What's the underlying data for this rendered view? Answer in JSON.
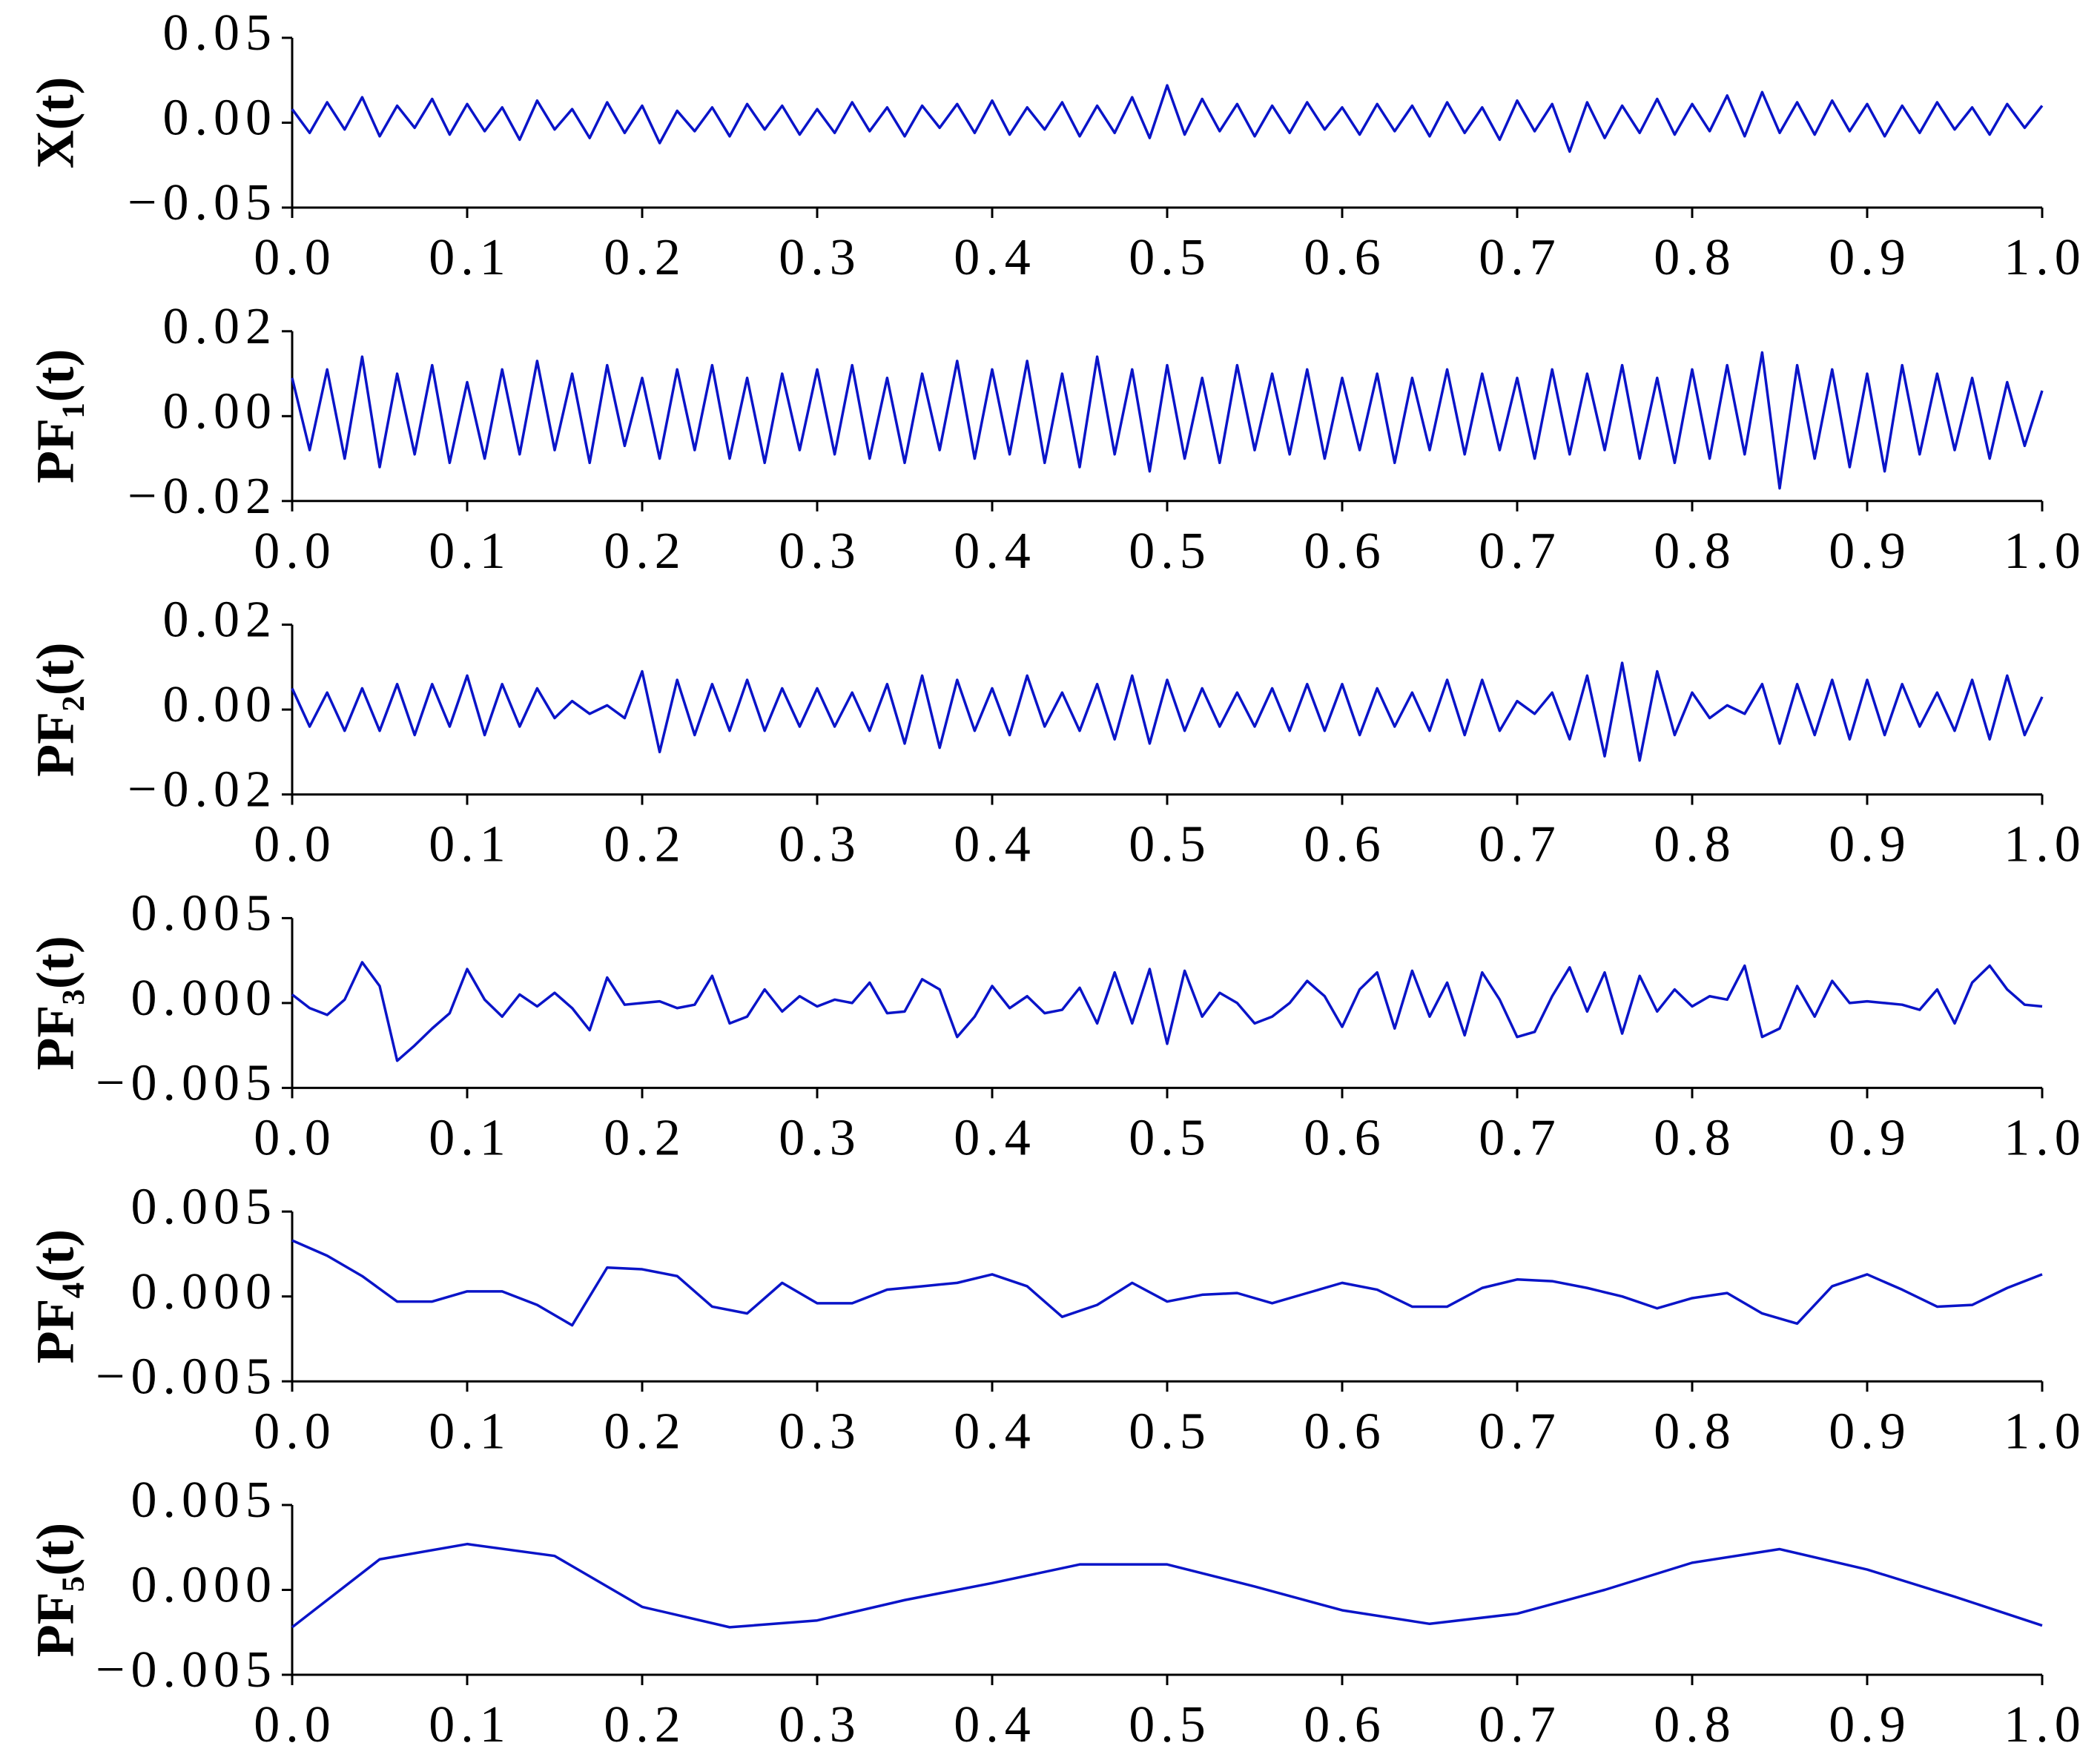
{
  "chart_data": [
    {
      "type": "line",
      "ylabel": "X(t)",
      "color": "#0a14c8",
      "xlim": [
        0,
        1
      ],
      "ylim": [
        -0.05,
        0.05
      ],
      "xticks": [
        {
          "value": 0,
          "label": "0.0"
        },
        0.1,
        0.2,
        0.3,
        0.4,
        0.5,
        0.6,
        0.7,
        0.8,
        0.9,
        {
          "value": 1,
          "label": "1.0"
        }
      ],
      "yticks": [
        {
          "value": -0.05,
          "label": "−0.05"
        },
        {
          "value": 0,
          "label": "0.00"
        },
        {
          "value": 0.05,
          "label": "0.05"
        }
      ],
      "x": [
        0,
        0.01,
        0.02,
        0.03,
        0.04,
        0.05,
        0.06,
        0.07,
        0.08,
        0.09,
        0.1,
        0.11,
        0.12,
        0.13,
        0.14,
        0.15,
        0.16,
        0.17,
        0.18,
        0.19,
        0.2,
        0.21,
        0.22,
        0.23,
        0.24,
        0.25,
        0.26,
        0.27,
        0.28,
        0.29,
        0.3,
        0.31,
        0.32,
        0.33,
        0.34,
        0.35,
        0.36,
        0.37,
        0.38,
        0.39,
        0.4,
        0.41,
        0.42,
        0.43,
        0.44,
        0.45,
        0.46,
        0.47,
        0.48,
        0.49,
        0.5,
        0.51,
        0.52,
        0.53,
        0.54,
        0.55,
        0.56,
        0.57,
        0.58,
        0.59,
        0.6,
        0.61,
        0.62,
        0.63,
        0.64,
        0.65,
        0.66,
        0.67,
        0.68,
        0.69,
        0.7,
        0.71,
        0.72,
        0.73,
        0.74,
        0.75,
        0.76,
        0.77,
        0.78,
        0.79,
        0.8,
        0.81,
        0.82,
        0.83,
        0.84,
        0.85,
        0.86,
        0.87,
        0.88,
        0.89,
        0.9,
        0.91,
        0.92,
        0.93,
        0.94,
        0.95,
        0.96,
        0.97,
        0.98,
        0.99,
        1
      ],
      "values": [
        0.008,
        -0.006,
        0.012,
        -0.004,
        0.015,
        -0.008,
        0.01,
        -0.003,
        0.014,
        -0.007,
        0.011,
        -0.005,
        0.009,
        -0.01,
        0.013,
        -0.004,
        0.008,
        -0.009,
        0.012,
        -0.006,
        0.01,
        -0.012,
        0.007,
        -0.005,
        0.009,
        -0.008,
        0.011,
        -0.004,
        0.01,
        -0.007,
        0.008,
        -0.006,
        0.012,
        -0.005,
        0.009,
        -0.008,
        0.01,
        -0.003,
        0.011,
        -0.006,
        0.013,
        -0.007,
        0.009,
        -0.004,
        0.012,
        -0.008,
        0.01,
        -0.006,
        0.015,
        -0.009,
        0.022,
        -0.007,
        0.014,
        -0.005,
        0.011,
        -0.008,
        0.01,
        -0.006,
        0.012,
        -0.004,
        0.009,
        -0.007,
        0.011,
        -0.005,
        0.01,
        -0.008,
        0.012,
        -0.006,
        0.009,
        -0.01,
        0.013,
        -0.005,
        0.011,
        -0.017,
        0.012,
        -0.009,
        0.01,
        -0.006,
        0.014,
        -0.007,
        0.011,
        -0.005,
        0.016,
        -0.008,
        0.018,
        -0.006,
        0.012,
        -0.007,
        0.013,
        -0.005,
        0.011,
        -0.008,
        0.01,
        -0.006,
        0.012,
        -0.004,
        0.009,
        -0.007,
        0.011,
        -0.003,
        0.01
      ]
    },
    {
      "type": "line",
      "ylabel": "PF₁(t)",
      "color": "#0a14c8",
      "xlim": [
        0,
        1
      ],
      "ylim": [
        -0.02,
        0.02
      ],
      "xticks": [
        {
          "value": 0,
          "label": "0.0"
        },
        0.1,
        0.2,
        0.3,
        0.4,
        0.5,
        0.6,
        0.7,
        0.8,
        0.9,
        {
          "value": 1,
          "label": "1.0"
        }
      ],
      "yticks": [
        {
          "value": -0.02,
          "label": "−0.02"
        },
        {
          "value": 0,
          "label": "0.00"
        },
        {
          "value": 0.02,
          "label": "0.02"
        }
      ],
      "x": [
        0,
        0.01,
        0.02,
        0.03,
        0.04,
        0.05,
        0.06,
        0.07,
        0.08,
        0.09,
        0.1,
        0.11,
        0.12,
        0.13,
        0.14,
        0.15,
        0.16,
        0.17,
        0.18,
        0.19,
        0.2,
        0.21,
        0.22,
        0.23,
        0.24,
        0.25,
        0.26,
        0.27,
        0.28,
        0.29,
        0.3,
        0.31,
        0.32,
        0.33,
        0.34,
        0.35,
        0.36,
        0.37,
        0.38,
        0.39,
        0.4,
        0.41,
        0.42,
        0.43,
        0.44,
        0.45,
        0.46,
        0.47,
        0.48,
        0.49,
        0.5,
        0.51,
        0.52,
        0.53,
        0.54,
        0.55,
        0.56,
        0.57,
        0.58,
        0.59,
        0.6,
        0.61,
        0.62,
        0.63,
        0.64,
        0.65,
        0.66,
        0.67,
        0.68,
        0.69,
        0.7,
        0.71,
        0.72,
        0.73,
        0.74,
        0.75,
        0.76,
        0.77,
        0.78,
        0.79,
        0.8,
        0.81,
        0.82,
        0.83,
        0.84,
        0.85,
        0.86,
        0.87,
        0.88,
        0.89,
        0.9,
        0.91,
        0.92,
        0.93,
        0.94,
        0.95,
        0.96,
        0.97,
        0.98,
        0.99,
        1
      ],
      "values": [
        0.009,
        -0.008,
        0.011,
        -0.01,
        0.014,
        -0.012,
        0.01,
        -0.009,
        0.012,
        -0.011,
        0.008,
        -0.01,
        0.011,
        -0.009,
        0.013,
        -0.008,
        0.01,
        -0.011,
        0.012,
        -0.007,
        0.009,
        -0.01,
        0.011,
        -0.008,
        0.012,
        -0.01,
        0.009,
        -0.011,
        0.01,
        -0.008,
        0.011,
        -0.009,
        0.012,
        -0.01,
        0.009,
        -0.011,
        0.01,
        -0.008,
        0.013,
        -0.01,
        0.011,
        -0.009,
        0.013,
        -0.011,
        0.01,
        -0.012,
        0.014,
        -0.009,
        0.011,
        -0.013,
        0.012,
        -0.01,
        0.009,
        -0.011,
        0.012,
        -0.008,
        0.01,
        -0.009,
        0.011,
        -0.01,
        0.009,
        -0.008,
        0.01,
        -0.011,
        0.009,
        -0.008,
        0.011,
        -0.009,
        0.01,
        -0.008,
        0.009,
        -0.01,
        0.011,
        -0.009,
        0.01,
        -0.008,
        0.012,
        -0.01,
        0.009,
        -0.011,
        0.011,
        -0.01,
        0.012,
        -0.009,
        0.015,
        -0.017,
        0.012,
        -0.01,
        0.011,
        -0.012,
        0.01,
        -0.013,
        0.012,
        -0.009,
        0.01,
        -0.008,
        0.009,
        -0.01,
        0.008,
        -0.007,
        0.006
      ]
    },
    {
      "type": "line",
      "ylabel": "PF₂(t)",
      "color": "#0a14c8",
      "xlim": [
        0,
        1
      ],
      "ylim": [
        -0.02,
        0.02
      ],
      "xticks": [
        {
          "value": 0,
          "label": "0.0"
        },
        0.1,
        0.2,
        0.3,
        0.4,
        0.5,
        0.6,
        0.7,
        0.8,
        0.9,
        {
          "value": 1,
          "label": "1.0"
        }
      ],
      "yticks": [
        {
          "value": -0.02,
          "label": "−0.02"
        },
        {
          "value": 0,
          "label": "0.00"
        },
        {
          "value": 0.02,
          "label": "0.02"
        }
      ],
      "x": [
        0,
        0.01,
        0.02,
        0.03,
        0.04,
        0.05,
        0.06,
        0.07,
        0.08,
        0.09,
        0.1,
        0.11,
        0.12,
        0.13,
        0.14,
        0.15,
        0.16,
        0.17,
        0.18,
        0.19,
        0.2,
        0.21,
        0.22,
        0.23,
        0.24,
        0.25,
        0.26,
        0.27,
        0.28,
        0.29,
        0.3,
        0.31,
        0.32,
        0.33,
        0.34,
        0.35,
        0.36,
        0.37,
        0.38,
        0.39,
        0.4,
        0.41,
        0.42,
        0.43,
        0.44,
        0.45,
        0.46,
        0.47,
        0.48,
        0.49,
        0.5,
        0.51,
        0.52,
        0.53,
        0.54,
        0.55,
        0.56,
        0.57,
        0.58,
        0.59,
        0.6,
        0.61,
        0.62,
        0.63,
        0.64,
        0.65,
        0.66,
        0.67,
        0.68,
        0.69,
        0.7,
        0.71,
        0.72,
        0.73,
        0.74,
        0.75,
        0.76,
        0.77,
        0.78,
        0.79,
        0.8,
        0.81,
        0.82,
        0.83,
        0.84,
        0.85,
        0.86,
        0.87,
        0.88,
        0.89,
        0.9,
        0.91,
        0.92,
        0.93,
        0.94,
        0.95,
        0.96,
        0.97,
        0.98,
        0.99,
        1
      ],
      "values": [
        0.005,
        -0.004,
        0.004,
        -0.005,
        0.005,
        -0.005,
        0.006,
        -0.006,
        0.006,
        -0.004,
        0.008,
        -0.006,
        0.006,
        -0.004,
        0.005,
        -0.002,
        0.002,
        -0.001,
        0.001,
        -0.002,
        0.009,
        -0.01,
        0.007,
        -0.006,
        0.006,
        -0.005,
        0.007,
        -0.005,
        0.005,
        -0.004,
        0.005,
        -0.004,
        0.004,
        -0.005,
        0.006,
        -0.008,
        0.008,
        -0.009,
        0.007,
        -0.005,
        0.005,
        -0.006,
        0.008,
        -0.004,
        0.004,
        -0.005,
        0.006,
        -0.007,
        0.008,
        -0.008,
        0.007,
        -0.005,
        0.005,
        -0.004,
        0.004,
        -0.004,
        0.005,
        -0.005,
        0.006,
        -0.005,
        0.006,
        -0.006,
        0.005,
        -0.004,
        0.004,
        -0.005,
        0.007,
        -0.006,
        0.007,
        -0.005,
        0.002,
        -0.001,
        0.004,
        -0.007,
        0.008,
        -0.011,
        0.011,
        -0.012,
        0.009,
        -0.006,
        0.004,
        -0.002,
        0.001,
        -0.001,
        0.006,
        -0.008,
        0.006,
        -0.006,
        0.007,
        -0.007,
        0.007,
        -0.006,
        0.006,
        -0.004,
        0.004,
        -0.005,
        0.007,
        -0.007,
        0.008,
        -0.006,
        0.003
      ]
    },
    {
      "type": "line",
      "ylabel": "PF₃(t)",
      "color": "#0a14c8",
      "xlim": [
        0,
        1
      ],
      "ylim": [
        -0.005,
        0.005
      ],
      "xticks": [
        {
          "value": 0,
          "label": "0.0"
        },
        0.1,
        0.2,
        0.3,
        0.4,
        0.5,
        0.6,
        0.7,
        0.8,
        0.9,
        {
          "value": 1,
          "label": "1.0"
        }
      ],
      "yticks": [
        {
          "value": -0.005,
          "label": "−0.005"
        },
        {
          "value": 0,
          "label": "0.000"
        },
        0.005
      ],
      "x": [
        0,
        0.01,
        0.02,
        0.03,
        0.04,
        0.05,
        0.06,
        0.07,
        0.08,
        0.09,
        0.1,
        0.11,
        0.12,
        0.13,
        0.14,
        0.15,
        0.16,
        0.17,
        0.18,
        0.19,
        0.2,
        0.21,
        0.22,
        0.23,
        0.24,
        0.25,
        0.26,
        0.27,
        0.28,
        0.29,
        0.3,
        0.31,
        0.32,
        0.33,
        0.34,
        0.35,
        0.36,
        0.37,
        0.38,
        0.39,
        0.4,
        0.41,
        0.42,
        0.43,
        0.44,
        0.45,
        0.46,
        0.47,
        0.48,
        0.49,
        0.5,
        0.51,
        0.52,
        0.53,
        0.54,
        0.55,
        0.56,
        0.57,
        0.58,
        0.59,
        0.6,
        0.61,
        0.62,
        0.63,
        0.64,
        0.65,
        0.66,
        0.67,
        0.68,
        0.69,
        0.7,
        0.71,
        0.72,
        0.73,
        0.74,
        0.75,
        0.76,
        0.77,
        0.78,
        0.79,
        0.8,
        0.81,
        0.82,
        0.83,
        0.84,
        0.85,
        0.86,
        0.87,
        0.88,
        0.89,
        0.9,
        0.91,
        0.92,
        0.93,
        0.94,
        0.95,
        0.96,
        0.97,
        0.98,
        0.99,
        1
      ],
      "values": [
        0.0005,
        -0.0003,
        -0.0007,
        0.0002,
        0.0024,
        0.001,
        -0.0034,
        -0.0025,
        -0.0015,
        -0.0006,
        0.002,
        0.0002,
        -0.0008,
        0.0005,
        -0.0002,
        0.0006,
        -0.0003,
        -0.0016,
        0.0015,
        -0.0001,
        0.0,
        0.0001,
        -0.0003,
        -0.0001,
        0.0016,
        -0.0012,
        -0.0008,
        0.0008,
        -0.0005,
        0.0004,
        -0.0002,
        0.0002,
        0.0,
        0.0012,
        -0.0006,
        -0.0005,
        0.0014,
        0.0008,
        -0.002,
        -0.0008,
        0.001,
        -0.0003,
        0.0004,
        -0.0006,
        -0.0004,
        0.0009,
        -0.0012,
        0.0018,
        -0.0012,
        0.002,
        -0.0024,
        0.0019,
        -0.0008,
        0.0006,
        0.0,
        -0.0012,
        -0.0008,
        0.0,
        0.0013,
        0.0004,
        -0.0014,
        0.0008,
        0.0018,
        -0.0015,
        0.0019,
        -0.0008,
        0.0012,
        -0.0019,
        0.0018,
        0.0002,
        -0.002,
        -0.0017,
        0.0004,
        0.0021,
        -0.0005,
        0.0018,
        -0.0018,
        0.0016,
        -0.0005,
        0.0008,
        -0.0002,
        0.0004,
        0.0002,
        0.0022,
        -0.002,
        -0.0015,
        0.001,
        -0.0008,
        0.0013,
        0.0,
        0.0001,
        0.0,
        -0.0001,
        -0.0004,
        0.0008,
        -0.0012,
        0.0012,
        0.0022,
        0.0008,
        -0.0001,
        -0.0002
      ]
    },
    {
      "type": "line",
      "ylabel": "PF₄(t)",
      "color": "#0a14c8",
      "xlim": [
        0,
        1
      ],
      "ylim": [
        -0.005,
        0.005
      ],
      "xticks": [
        {
          "value": 0,
          "label": "0.0"
        },
        0.1,
        0.2,
        0.3,
        0.4,
        0.5,
        0.6,
        0.7,
        0.8,
        0.9,
        {
          "value": 1,
          "label": "1.0"
        }
      ],
      "yticks": [
        {
          "value": -0.005,
          "label": "−0.005"
        },
        {
          "value": 0,
          "label": "0.000"
        },
        0.005
      ],
      "x": [
        0,
        0.02,
        0.04,
        0.06,
        0.08,
        0.1,
        0.12,
        0.14,
        0.16,
        0.18,
        0.2,
        0.22,
        0.24,
        0.26,
        0.28,
        0.3,
        0.32,
        0.34,
        0.36,
        0.38,
        0.4,
        0.42,
        0.44,
        0.46,
        0.48,
        0.5,
        0.52,
        0.54,
        0.56,
        0.58,
        0.6,
        0.62,
        0.64,
        0.66,
        0.68,
        0.7,
        0.72,
        0.74,
        0.76,
        0.78,
        0.8,
        0.82,
        0.84,
        0.86,
        0.88,
        0.9,
        0.92,
        0.94,
        0.96,
        0.98,
        1
      ],
      "values": [
        0.0033,
        0.0024,
        0.0012,
        -0.0003,
        -0.0003,
        0.0003,
        0.0003,
        -0.0005,
        -0.0017,
        0.0017,
        0.0016,
        0.0012,
        -0.0006,
        -0.001,
        0.0008,
        -0.0004,
        -0.0004,
        0.0004,
        0.0006,
        0.0008,
        0.0013,
        0.0006,
        -0.0012,
        -0.0005,
        0.0008,
        -0.0003,
        0.0001,
        0.0002,
        -0.0004,
        0.0002,
        0.0008,
        0.0004,
        -0.0006,
        -0.0006,
        0.0005,
        0.001,
        0.0009,
        0.0005,
        0.0,
        -0.0007,
        -0.0001,
        0.0002,
        -0.001,
        -0.0016,
        0.0006,
        0.0013,
        0.0004,
        -0.0006,
        -0.0005,
        0.0005,
        0.0013
      ]
    },
    {
      "type": "line",
      "ylabel": "PF₅(t)",
      "color": "#0a14c8",
      "xlim": [
        0,
        1
      ],
      "ylim": [
        -0.005,
        0.005
      ],
      "xticks": [
        {
          "value": 0,
          "label": "0.0"
        },
        0.1,
        0.2,
        0.3,
        0.4,
        0.5,
        0.6,
        0.7,
        0.8,
        0.9,
        {
          "value": 1,
          "label": "1.0"
        }
      ],
      "yticks": [
        {
          "value": -0.005,
          "label": "−0.005"
        },
        {
          "value": 0,
          "label": "0.000"
        },
        0.005
      ],
      "x": [
        0,
        0.05,
        0.1,
        0.15,
        0.2,
        0.25,
        0.3,
        0.35,
        0.4,
        0.45,
        0.5,
        0.55,
        0.6,
        0.65,
        0.7,
        0.75,
        0.8,
        0.85,
        0.9,
        0.95,
        1
      ],
      "values": [
        -0.0022,
        0.0018,
        0.0027,
        0.002,
        -0.001,
        -0.0022,
        -0.0018,
        -0.0006,
        0.0004,
        0.0015,
        0.0015,
        0.0002,
        -0.0012,
        -0.002,
        -0.0014,
        0.0,
        0.0016,
        0.0024,
        0.0012,
        -0.0004,
        -0.0021
      ]
    }
  ]
}
